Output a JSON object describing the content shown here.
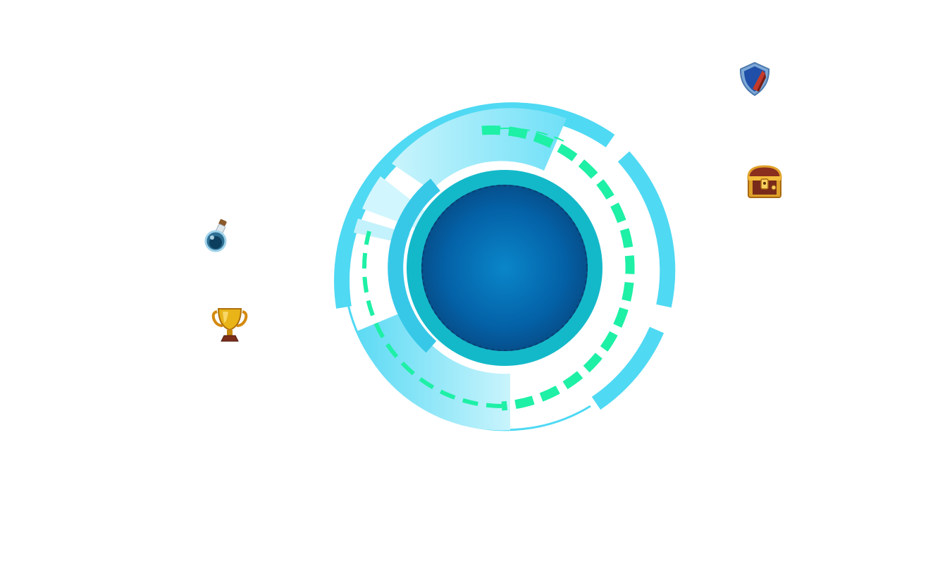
{
  "scene": {
    "background": "#ffffff"
  },
  "portal": {
    "core_color": "#0377c0",
    "core_edge_color": "#064f8c",
    "inner_ring_color": "#14b9c9",
    "outer_ring_color": "#4fd9f3",
    "light_ring_color": "#a6eefb",
    "dash_color": "#1ef0a6"
  },
  "items": [
    {
      "name": "potion",
      "icon": "potion-icon"
    },
    {
      "name": "trophy",
      "icon": "trophy-icon"
    },
    {
      "name": "shield",
      "icon": "shield-icon"
    },
    {
      "name": "chest",
      "icon": "treasure-chest-icon"
    }
  ]
}
